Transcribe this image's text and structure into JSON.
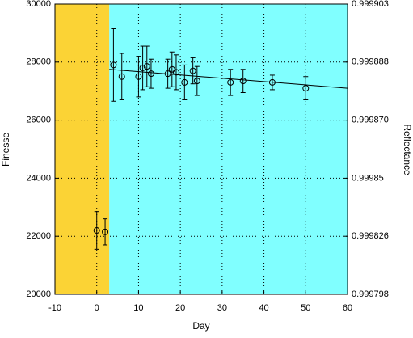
{
  "chart_data": {
    "type": "scatter",
    "x_label": "Day",
    "y_label": "Finesse",
    "y2_label": "Reflectance",
    "xlim": [
      -10,
      60
    ],
    "xticks": [
      -10,
      0,
      10,
      20,
      30,
      40,
      50,
      60
    ],
    "ylim": [
      20000,
      30000
    ],
    "yticks": [
      20000,
      22000,
      24000,
      26000,
      28000,
      30000
    ],
    "y2lim": [
      0.999798,
      0.999903
    ],
    "y2ticks": [
      0.999798,
      0.999826,
      0.99985,
      {
        "value": 0.99987,
        "label": "0.999870"
      },
      0.999888,
      0.999903
    ],
    "grid": true,
    "regions": [
      {
        "x": [
          -10,
          3
        ],
        "color": "#fbd335"
      },
      {
        "x": [
          3,
          60
        ],
        "color": "#80ffff"
      }
    ],
    "x": [
      0,
      2,
      4,
      6,
      10,
      11,
      12,
      13,
      17,
      18,
      19,
      21,
      23,
      24,
      32,
      35,
      42,
      50
    ],
    "values": [
      22200,
      22150,
      27900,
      27500,
      27500,
      27800,
      27850,
      27600,
      27600,
      27750,
      27650,
      27300,
      27700,
      27350,
      27300,
      27350,
      27300,
      27100
    ],
    "errors": [
      650,
      450,
      1250,
      800,
      700,
      750,
      700,
      500,
      500,
      600,
      600,
      600,
      450,
      500,
      450,
      400,
      250,
      400
    ],
    "color": "#000000",
    "fit_line": {
      "x": [
        3,
        60
      ],
      "y": [
        27750,
        27100
      ]
    }
  }
}
